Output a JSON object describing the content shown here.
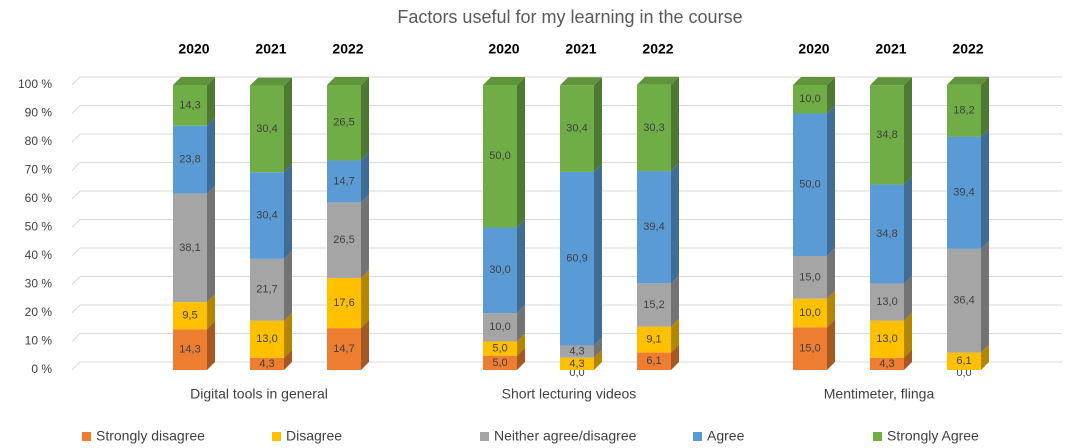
{
  "chart_data": {
    "type": "stacked_bar",
    "title": "Factors useful for my learning in the course",
    "groups": [
      "Digital tools in general",
      "Short lecturing videos",
      "Mentimeter, flinga"
    ],
    "categories": [
      "2020",
      "2021",
      "2022",
      "2020",
      "2021",
      "2022",
      "2020",
      "2021",
      "2022"
    ],
    "series": [
      {
        "name": "Strongly disagree",
        "color": "#ed7d31",
        "values": [
          14.3,
          4.3,
          14.7,
          5.0,
          0.0,
          6.1,
          15.0,
          4.3,
          0.0
        ],
        "value_labels": [
          "14,3",
          "4,3",
          "14,7",
          "5,0",
          "0,0",
          "6,1",
          "15,0",
          "4,3",
          "0,0"
        ]
      },
      {
        "name": "Disagree",
        "color": "#ffc000",
        "values": [
          9.5,
          13.0,
          17.6,
          5.0,
          4.3,
          9.1,
          10.0,
          13.0,
          6.1
        ],
        "value_labels": [
          "9,5",
          "13,0",
          "17,6",
          "5,0",
          "4,3",
          "9,1",
          "10,0",
          "13,0",
          "6,1"
        ]
      },
      {
        "name": "Neither agree/disagree",
        "color": "#a5a5a5",
        "values": [
          38.1,
          21.7,
          26.5,
          10.0,
          4.3,
          15.2,
          15.0,
          13.0,
          36.4
        ],
        "value_labels": [
          "38,1",
          "21,7",
          "26,5",
          "10,0",
          "4,3",
          "15,2",
          "15,0",
          "13,0",
          "36,4"
        ]
      },
      {
        "name": "Agree",
        "color": "#5b9bd5",
        "values": [
          23.8,
          30.4,
          14.7,
          30.0,
          60.9,
          39.4,
          50.0,
          34.8,
          39.4
        ],
        "value_labels": [
          "23,8",
          "30,4",
          "14,7",
          "30,0",
          "60,9",
          "39,4",
          "50,0",
          "34,8",
          "39,4"
        ]
      },
      {
        "name": "Strongly Agree",
        "color": "#70ad47",
        "values": [
          14.3,
          30.4,
          26.5,
          50.0,
          30.4,
          30.3,
          10.0,
          34.8,
          18.2
        ],
        "value_labels": [
          "14,3",
          "30,4",
          "26,5",
          "50,0",
          "30,4",
          "30,3",
          "10,0",
          "34,8",
          "18,2"
        ]
      }
    ],
    "ylim": [
      0,
      100
    ],
    "yticks": [
      {
        "value": 0,
        "label": "0 %"
      },
      {
        "value": 10,
        "label": "10 %"
      },
      {
        "value": 20,
        "label": "20 %"
      },
      {
        "value": 30,
        "label": "30 %"
      },
      {
        "value": 40,
        "label": "40 %"
      },
      {
        "value": 50,
        "label": "50 %"
      },
      {
        "value": 60,
        "label": "60 %"
      },
      {
        "value": 70,
        "label": "70 %"
      },
      {
        "value": 80,
        "label": "80 %"
      },
      {
        "value": 90,
        "label": "90 %"
      },
      {
        "value": 100,
        "label": "100 %"
      }
    ],
    "grid": true,
    "legend": "bottom"
  }
}
